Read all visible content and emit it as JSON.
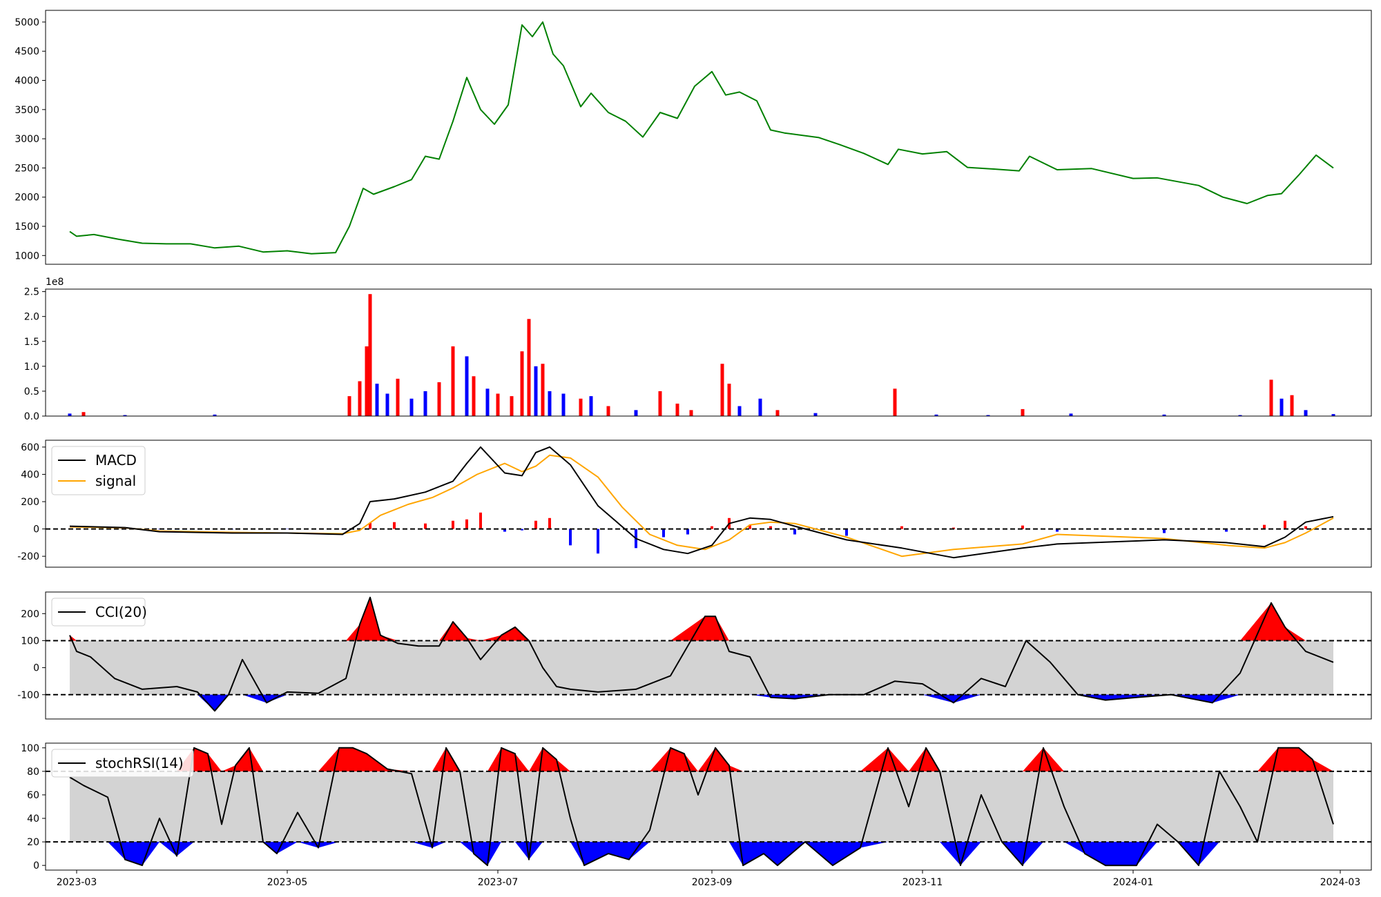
{
  "x_axis": {
    "start": "2023-02-20",
    "end": "2024-03-10",
    "ticks": [
      "2023-03",
      "2023-05",
      "2023-07",
      "2023-09",
      "2023-11",
      "2024-01",
      "2024-03"
    ]
  },
  "colors": {
    "price": "#008000",
    "up": "#ff0000",
    "down": "#0000ff",
    "signal": "#ffa500",
    "band": "#d3d3d3",
    "line": "#000000"
  },
  "chart_data": [
    {
      "type": "line",
      "panel": "price",
      "ylim": [
        850,
        5200
      ],
      "yticks": [
        1000,
        1500,
        2000,
        2500,
        3000,
        3500,
        4000,
        4500,
        5000
      ],
      "series": [
        {
          "x": [
            "2023-02-27",
            "2023-03-01",
            "2023-03-06",
            "2023-03-13",
            "2023-03-20",
            "2023-03-27",
            "2023-04-03",
            "2023-04-10",
            "2023-04-17",
            "2023-04-24",
            "2023-05-01",
            "2023-05-08",
            "2023-05-15",
            "2023-05-19",
            "2023-05-23",
            "2023-05-26",
            "2023-06-01",
            "2023-06-06",
            "2023-06-10",
            "2023-06-14",
            "2023-06-18",
            "2023-06-22",
            "2023-06-26",
            "2023-06-30",
            "2023-07-04",
            "2023-07-08",
            "2023-07-11",
            "2023-07-14",
            "2023-07-17",
            "2023-07-20",
            "2023-07-25",
            "2023-07-28",
            "2023-08-02",
            "2023-08-07",
            "2023-08-12",
            "2023-08-17",
            "2023-08-22",
            "2023-08-27",
            "2023-09-01",
            "2023-09-05",
            "2023-09-09",
            "2023-09-14",
            "2023-09-18",
            "2023-09-22",
            "2023-10-02",
            "2023-10-08",
            "2023-10-15",
            "2023-10-22",
            "2023-10-25",
            "2023-11-01",
            "2023-11-08",
            "2023-11-14",
            "2023-11-22",
            "2023-11-29",
            "2023-12-02",
            "2023-12-10",
            "2023-12-20",
            "2024-01-01",
            "2024-01-08",
            "2024-01-20",
            "2024-01-27",
            "2024-02-03",
            "2024-02-09",
            "2024-02-13",
            "2024-02-18",
            "2024-02-23",
            "2024-02-28"
          ],
          "values": [
            1410,
            1330,
            1360,
            1280,
            1210,
            1200,
            1200,
            1130,
            1160,
            1060,
            1080,
            1030,
            1050,
            1500,
            2150,
            2050,
            2180,
            2300,
            2700,
            2650,
            3300,
            4050,
            3500,
            3250,
            3580,
            4950,
            4750,
            5000,
            4450,
            4250,
            3550,
            3780,
            3450,
            3300,
            3030,
            3450,
            3350,
            3900,
            4150,
            3750,
            3800,
            3650,
            3150,
            3100,
            3020,
            2900,
            2750,
            2560,
            2820,
            2740,
            2780,
            2510,
            2480,
            2450,
            2700,
            2470,
            2490,
            2320,
            2330,
            2200,
            2000,
            1890,
            2030,
            2060,
            2380,
            2720,
            2500
          ]
        }
      ]
    },
    {
      "type": "bar",
      "panel": "volume",
      "ylim": [
        0,
        255000000
      ],
      "yticks": [
        "0.0",
        "0.5",
        "1.0",
        "1.5",
        "2.0",
        "2.5"
      ],
      "scale_label": "1e8",
      "series": [
        {
          "note": "daily volume",
          "x": [
            "2023-02-27",
            "2023-03-03",
            "2023-03-15",
            "2023-04-10",
            "2023-05-19",
            "2023-05-22",
            "2023-05-24",
            "2023-05-25",
            "2023-05-27",
            "2023-05-30",
            "2023-06-02",
            "2023-06-06",
            "2023-06-10",
            "2023-06-14",
            "2023-06-18",
            "2023-06-22",
            "2023-06-24",
            "2023-06-28",
            "2023-07-01",
            "2023-07-05",
            "2023-07-08",
            "2023-07-10",
            "2023-07-12",
            "2023-07-14",
            "2023-07-16",
            "2023-07-20",
            "2023-07-25",
            "2023-07-28",
            "2023-08-02",
            "2023-08-10",
            "2023-08-17",
            "2023-08-22",
            "2023-08-26",
            "2023-09-04",
            "2023-09-06",
            "2023-09-09",
            "2023-09-15",
            "2023-09-20",
            "2023-10-01",
            "2023-10-24",
            "2023-11-05",
            "2023-11-20",
            "2023-11-30",
            "2023-12-14",
            "2024-01-10",
            "2024-02-01",
            "2024-02-10",
            "2024-02-13",
            "2024-02-16",
            "2024-02-20",
            "2024-02-28"
          ],
          "values": [
            5000000,
            8000000,
            2000000,
            3000000,
            40000000,
            70000000,
            140000000,
            245000000,
            65000000,
            45000000,
            75000000,
            35000000,
            50000000,
            68000000,
            140000000,
            120000000,
            80000000,
            55000000,
            45000000,
            40000000,
            130000000,
            195000000,
            100000000,
            105000000,
            50000000,
            45000000,
            35000000,
            40000000,
            20000000,
            12000000,
            50000000,
            25000000,
            12000000,
            105000000,
            65000000,
            20000000,
            35000000,
            12000000,
            6000000,
            55000000,
            3000000,
            2000000,
            14000000,
            5000000,
            3000000,
            2000000,
            73000000,
            35000000,
            42000000,
            12000000,
            4000000
          ],
          "direction": [
            "down",
            "red",
            "down",
            "down",
            "up",
            "up",
            "up",
            "up",
            "down",
            "down",
            "up",
            "down",
            "down",
            "up",
            "up",
            "down",
            "up",
            "down",
            "up",
            "up",
            "up",
            "up",
            "down",
            "up",
            "down",
            "down",
            "up",
            "down",
            "up",
            "down",
            "up",
            "up",
            "up",
            "up",
            "up",
            "down",
            "down",
            "up",
            "down",
            "up",
            "down",
            "down",
            "up",
            "down",
            "down",
            "down",
            "up",
            "down",
            "up",
            "down",
            "down"
          ]
        }
      ]
    },
    {
      "type": "line",
      "panel": "macd",
      "ylim": [
        -280,
        650
      ],
      "yticks": [
        600,
        400,
        200,
        0,
        -200
      ],
      "zero_line": 0,
      "legend": [
        "MACD",
        "signal"
      ],
      "series": [
        {
          "name": "MACD",
          "x": [
            "2023-02-27",
            "2023-03-15",
            "2023-03-25",
            "2023-04-15",
            "2023-05-01",
            "2023-05-17",
            "2023-05-22",
            "2023-05-25",
            "2023-06-01",
            "2023-06-10",
            "2023-06-18",
            "2023-06-22",
            "2023-06-26",
            "2023-07-03",
            "2023-07-08",
            "2023-07-12",
            "2023-07-16",
            "2023-07-22",
            "2023-07-30",
            "2023-08-10",
            "2023-08-18",
            "2023-08-25",
            "2023-09-01",
            "2023-09-06",
            "2023-09-12",
            "2023-09-18",
            "2023-09-25",
            "2023-10-10",
            "2023-10-26",
            "2023-11-10",
            "2023-11-30",
            "2023-12-10",
            "2024-01-10",
            "2024-01-28",
            "2024-02-08",
            "2024-02-14",
            "2024-02-20",
            "2024-02-28"
          ],
          "values": [
            20,
            10,
            -20,
            -30,
            -30,
            -40,
            40,
            200,
            220,
            270,
            350,
            480,
            600,
            410,
            390,
            560,
            600,
            470,
            170,
            -70,
            -150,
            -180,
            -120,
            40,
            80,
            70,
            20,
            -80,
            -140,
            -210,
            -140,
            -110,
            -80,
            -100,
            -130,
            -60,
            50,
            90
          ]
        },
        {
          "name": "signal",
          "x": [
            "2023-02-27",
            "2023-03-15",
            "2023-03-25",
            "2023-04-15",
            "2023-05-01",
            "2023-05-17",
            "2023-05-22",
            "2023-05-28",
            "2023-06-05",
            "2023-06-12",
            "2023-06-18",
            "2023-06-25",
            "2023-07-03",
            "2023-07-08",
            "2023-07-12",
            "2023-07-16",
            "2023-07-22",
            "2023-07-30",
            "2023-08-06",
            "2023-08-14",
            "2023-08-22",
            "2023-08-30",
            "2023-09-06",
            "2023-09-12",
            "2023-09-18",
            "2023-09-25",
            "2023-10-10",
            "2023-10-26",
            "2023-11-10",
            "2023-11-30",
            "2023-12-10",
            "2024-01-10",
            "2024-01-28",
            "2024-02-08",
            "2024-02-14",
            "2024-02-20",
            "2024-02-28"
          ],
          "values": [
            15,
            8,
            -15,
            -25,
            -30,
            -35,
            -10,
            100,
            180,
            230,
            300,
            400,
            480,
            420,
            460,
            540,
            520,
            380,
            160,
            -40,
            -120,
            -150,
            -80,
            30,
            50,
            40,
            -60,
            -200,
            -150,
            -110,
            -40,
            -70,
            -120,
            -140,
            -100,
            -30,
            80
          ]
        }
      ],
      "histogram": [
        0,
        5,
        -3,
        -4,
        -2,
        -3,
        0,
        45,
        50,
        40,
        60,
        70,
        120,
        -20,
        -10,
        60,
        80,
        -120,
        -180,
        -140,
        -60,
        -40,
        20,
        80,
        30,
        20,
        -40,
        -50,
        20,
        10,
        25,
        -20,
        -30,
        -20,
        30,
        60,
        20
      ]
    },
    {
      "type": "area",
      "panel": "cci",
      "ylim": [
        -190,
        280
      ],
      "yticks": [
        200,
        100,
        0,
        -100
      ],
      "bands": [
        100,
        -100
      ],
      "legend": [
        "CCI(20)"
      ],
      "series": [
        {
          "name": "CCI(20)",
          "x": [
            "2023-02-27",
            "2023-03-01",
            "2023-03-05",
            "2023-03-12",
            "2023-03-20",
            "2023-03-30",
            "2023-04-05",
            "2023-04-10",
            "2023-04-14",
            "2023-04-18",
            "2023-04-25",
            "2023-05-01",
            "2023-05-10",
            "2023-05-18",
            "2023-05-22",
            "2023-05-25",
            "2023-05-28",
            "2023-06-02",
            "2023-06-08",
            "2023-06-14",
            "2023-06-18",
            "2023-06-22",
            "2023-06-26",
            "2023-07-02",
            "2023-07-06",
            "2023-07-10",
            "2023-07-14",
            "2023-07-18",
            "2023-07-22",
            "2023-07-30",
            "2023-08-10",
            "2023-08-20",
            "2023-08-30",
            "2023-09-02",
            "2023-09-06",
            "2023-09-12",
            "2023-09-18",
            "2023-09-25",
            "2023-10-05",
            "2023-10-15",
            "2023-10-24",
            "2023-11-01",
            "2023-11-10",
            "2023-11-18",
            "2023-11-25",
            "2023-12-01",
            "2023-12-08",
            "2023-12-16",
            "2023-12-24",
            "2024-01-02",
            "2024-01-12",
            "2024-01-24",
            "2024-02-01",
            "2024-02-10",
            "2024-02-14",
            "2024-02-20",
            "2024-02-28"
          ],
          "values": [
            120,
            60,
            40,
            -40,
            -80,
            -70,
            -90,
            -160,
            -100,
            30,
            -130,
            -90,
            -95,
            -40,
            160,
            260,
            120,
            90,
            80,
            80,
            170,
            110,
            30,
            120,
            150,
            100,
            0,
            -70,
            -80,
            -90,
            -80,
            -30,
            190,
            190,
            60,
            40,
            -110,
            -115,
            -100,
            -100,
            -50,
            -60,
            -130,
            -40,
            -70,
            100,
            20,
            -100,
            -120,
            -110,
            -100,
            -130,
            -20,
            240,
            150,
            60,
            20
          ]
        }
      ]
    },
    {
      "type": "area",
      "panel": "stochrsi",
      "ylim": [
        -4,
        104
      ],
      "yticks": [
        100,
        80,
        60,
        40,
        20,
        0
      ],
      "bands": [
        80,
        20
      ],
      "legend": [
        "stochRSI(14)"
      ],
      "series": [
        {
          "name": "stochRSI(14)",
          "x": [
            "2023-02-27",
            "2023-03-03",
            "2023-03-10",
            "2023-03-15",
            "2023-03-20",
            "2023-03-25",
            "2023-03-30",
            "2023-04-04",
            "2023-04-08",
            "2023-04-12",
            "2023-04-16",
            "2023-04-20",
            "2023-04-24",
            "2023-04-28",
            "2023-05-04",
            "2023-05-10",
            "2023-05-16",
            "2023-05-20",
            "2023-05-24",
            "2023-05-30",
            "2023-06-06",
            "2023-06-12",
            "2023-06-16",
            "2023-06-20",
            "2023-06-24",
            "2023-06-28",
            "2023-07-02",
            "2023-07-06",
            "2023-07-10",
            "2023-07-14",
            "2023-07-18",
            "2023-07-22",
            "2023-07-26",
            "2023-08-02",
            "2023-08-08",
            "2023-08-14",
            "2023-08-20",
            "2023-08-24",
            "2023-08-28",
            "2023-09-02",
            "2023-09-06",
            "2023-09-10",
            "2023-09-16",
            "2023-09-20",
            "2023-09-28",
            "2023-10-06",
            "2023-10-14",
            "2023-10-22",
            "2023-10-28",
            "2023-11-02",
            "2023-11-06",
            "2023-11-12",
            "2023-11-18",
            "2023-11-24",
            "2023-11-30",
            "2023-12-06",
            "2023-12-12",
            "2023-12-18",
            "2023-12-24",
            "2024-01-02",
            "2024-01-08",
            "2024-01-14",
            "2024-01-20",
            "2024-01-26",
            "2024-02-01",
            "2024-02-06",
            "2024-02-12",
            "2024-02-18",
            "2024-02-22",
            "2024-02-28"
          ],
          "values": [
            75,
            68,
            58,
            5,
            0,
            40,
            8,
            100,
            95,
            35,
            85,
            100,
            20,
            10,
            45,
            15,
            100,
            100,
            95,
            82,
            78,
            15,
            100,
            80,
            10,
            0,
            100,
            95,
            5,
            100,
            90,
            40,
            0,
            10,
            5,
            30,
            100,
            95,
            60,
            100,
            85,
            0,
            10,
            0,
            20,
            0,
            15,
            100,
            50,
            100,
            80,
            0,
            60,
            20,
            0,
            100,
            50,
            10,
            0,
            0,
            35,
            20,
            0,
            80,
            50,
            20,
            100,
            100,
            90,
            35
          ]
        }
      ]
    }
  ]
}
